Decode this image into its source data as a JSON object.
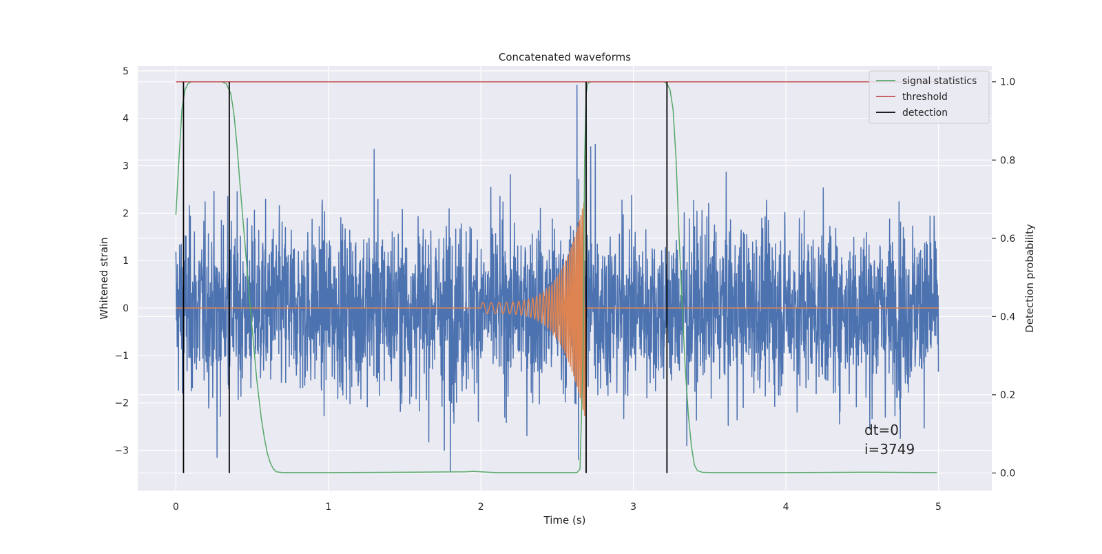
{
  "chart_data": {
    "type": "line",
    "title": "Concatenated waveforms",
    "xlabel": "Time (s)",
    "ylabel": "Whitened strain",
    "ylabel_right": "Detection probability",
    "xlim": [
      -0.25,
      5.35
    ],
    "ylim": [
      -3.85,
      5.1
    ],
    "ylim_right": [
      -0.045,
      1.04
    ],
    "x_ticks": [
      0,
      1,
      2,
      3,
      4,
      5
    ],
    "y_ticks": [
      -3,
      -2,
      -1,
      0,
      1,
      2,
      3,
      4,
      5
    ],
    "y_ticks_right": [
      0.0,
      0.2,
      0.4,
      0.6,
      0.8,
      1.0
    ],
    "x_tick_labels": [
      "0",
      "1",
      "2",
      "3",
      "4",
      "5"
    ],
    "y_tick_labels": [
      "−3",
      "−2",
      "−1",
      "0",
      "1",
      "2",
      "3",
      "4",
      "5"
    ],
    "y_tick_labels_right": [
      "0.0",
      "0.2",
      "0.4",
      "0.6",
      "0.8",
      "1.0"
    ],
    "grid": true,
    "legend_position": "top-right",
    "noise": {
      "x_range": [
        0,
        5
      ],
      "approx_std": 0.9,
      "color": "#4c72b0",
      "spikes": [
        {
          "x": 0.27,
          "y": 3.35
        },
        {
          "x": 0.34,
          "y": 2.35
        },
        {
          "x": 0.27,
          "y": -3.15
        },
        {
          "x": 1.3,
          "y": 3.35
        },
        {
          "x": 1.76,
          "y": -3.0
        },
        {
          "x": 1.8,
          "y": -3.45
        },
        {
          "x": 2.63,
          "y": 4.7
        },
        {
          "x": 2.72,
          "y": 3.4
        },
        {
          "x": 2.75,
          "y": 3.45
        },
        {
          "x": 2.64,
          "y": -3.2
        },
        {
          "x": 3.35,
          "y": -2.9
        },
        {
          "x": 4.75,
          "y": -2.75
        },
        {
          "x": 4.55,
          "y": -2.55
        }
      ]
    },
    "chirp": {
      "x_range": [
        2.0,
        2.68
      ],
      "color": "#dd8452",
      "start_amp": 0.12,
      "peak_amp": 2.3,
      "start_freq": 18,
      "end_freq": 110
    },
    "signal_statistics": {
      "x": [
        0,
        0.02,
        0.04,
        0.06,
        0.08,
        0.1,
        0.15,
        0.2,
        0.3,
        0.33,
        0.36,
        0.38,
        0.4,
        0.42,
        0.45,
        0.48,
        0.5,
        0.53,
        0.56,
        0.58,
        0.6,
        0.62,
        0.64,
        0.66,
        0.7,
        0.8,
        1.0,
        1.5,
        1.9,
        1.95,
        2.0,
        2.1,
        2.5,
        2.63,
        2.65,
        2.67,
        2.68,
        2.69,
        2.7,
        2.72,
        2.75,
        2.8,
        3.0,
        3.15,
        3.2,
        3.22,
        3.24,
        3.26,
        3.28,
        3.3,
        3.32,
        3.34,
        3.36,
        3.38,
        3.4,
        3.42,
        3.45,
        3.5,
        4.0,
        4.5,
        4.99
      ],
      "y": [
        0.66,
        0.8,
        0.93,
        0.98,
        0.995,
        1.0,
        1.0,
        1.0,
        1.0,
        0.995,
        0.97,
        0.92,
        0.84,
        0.74,
        0.6,
        0.46,
        0.37,
        0.24,
        0.14,
        0.09,
        0.05,
        0.025,
        0.01,
        0.003,
        0.001,
        0.001,
        0.001,
        0.002,
        0.003,
        0.004,
        0.003,
        0.001,
        0.001,
        0.001,
        0.01,
        0.3,
        0.8,
        0.97,
        0.995,
        1.0,
        1.0,
        1.0,
        1.0,
        1.0,
        1.0,
        0.995,
        0.98,
        0.93,
        0.8,
        0.6,
        0.42,
        0.27,
        0.15,
        0.07,
        0.02,
        0.006,
        0.002,
        0.001,
        0.001,
        0.002,
        0.001
      ]
    },
    "threshold": {
      "x": [
        0,
        4.99
      ],
      "value": 1.0
    },
    "detections": [
      0.05,
      0.35,
      2.69,
      3.22
    ],
    "series": [
      {
        "name": "signal statistics",
        "color": "#55a868"
      },
      {
        "name": "threshold",
        "color": "#c44e52"
      },
      {
        "name": "detection",
        "color": "#000000"
      }
    ],
    "annotations": [
      "dt=0",
      "i=3749"
    ]
  }
}
